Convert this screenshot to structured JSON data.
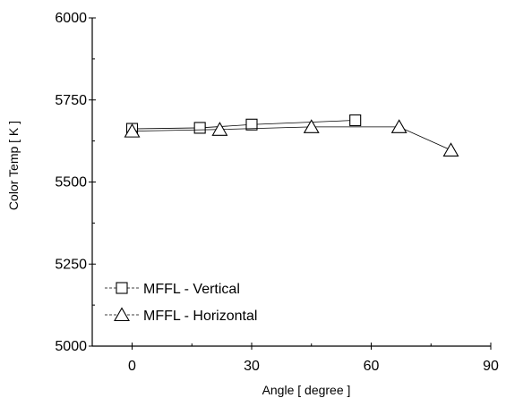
{
  "chart_data": {
    "type": "line",
    "title": "",
    "xlabel": "Angle  [ degree ]",
    "ylabel": "Color Temp [ K ]",
    "xlim": [
      -10,
      90
    ],
    "ylim": [
      5000,
      6000
    ],
    "x_ticks": [
      0,
      30,
      60,
      90
    ],
    "y_ticks": [
      5000,
      5250,
      5500,
      5750,
      6000
    ],
    "x_tick_labels": [
      "0",
      "30",
      "60",
      "90"
    ],
    "y_tick_labels": [
      "5000",
      "5250",
      "5500",
      "5750",
      "6000"
    ],
    "grid": false,
    "legend_position": "bottom-left",
    "series": [
      {
        "name": "MFFL - Vertical",
        "marker": "square",
        "color": "#000000",
        "x": [
          0,
          17,
          30,
          56
        ],
        "y": [
          5662,
          5665,
          5675,
          5688
        ]
      },
      {
        "name": "MFFL - Horizontal",
        "marker": "triangle",
        "color": "#000000",
        "x": [
          0,
          22,
          45,
          67,
          80
        ],
        "y": [
          5655,
          5660,
          5668,
          5668,
          5597
        ]
      }
    ]
  }
}
